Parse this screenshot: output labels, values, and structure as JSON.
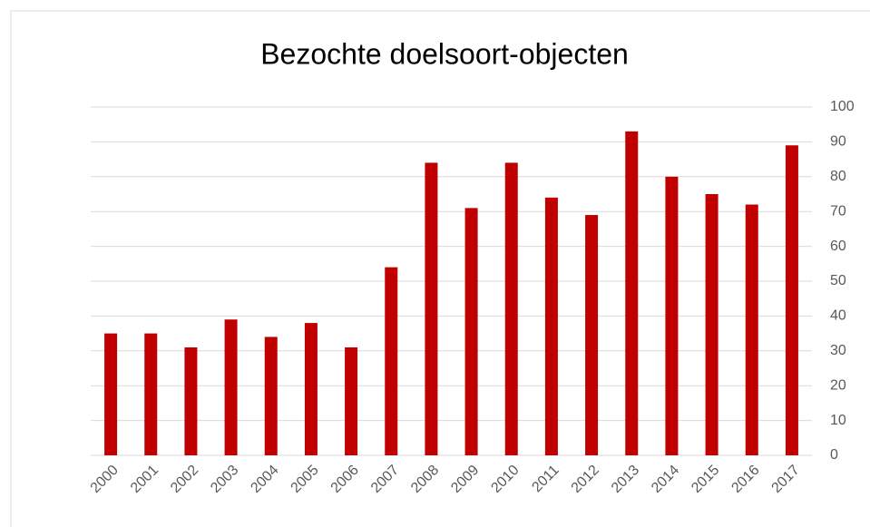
{
  "chart_data": {
    "type": "bar",
    "title": "Bezochte doelsoort-objecten",
    "categories": [
      "2000",
      "2001",
      "2002",
      "2003",
      "2004",
      "2005",
      "2006",
      "2007",
      "2008",
      "2009",
      "2010",
      "2011",
      "2012",
      "2013",
      "2014",
      "2015",
      "2016",
      "2017"
    ],
    "values": [
      35,
      35,
      31,
      39,
      34,
      38,
      31,
      54,
      84,
      71,
      84,
      74,
      69,
      93,
      80,
      75,
      72,
      89
    ],
    "color": "#c00000",
    "ylim": [
      0,
      100
    ],
    "yticks": [
      0,
      10,
      20,
      30,
      40,
      50,
      60,
      70,
      80,
      90,
      100
    ],
    "grid": true
  }
}
